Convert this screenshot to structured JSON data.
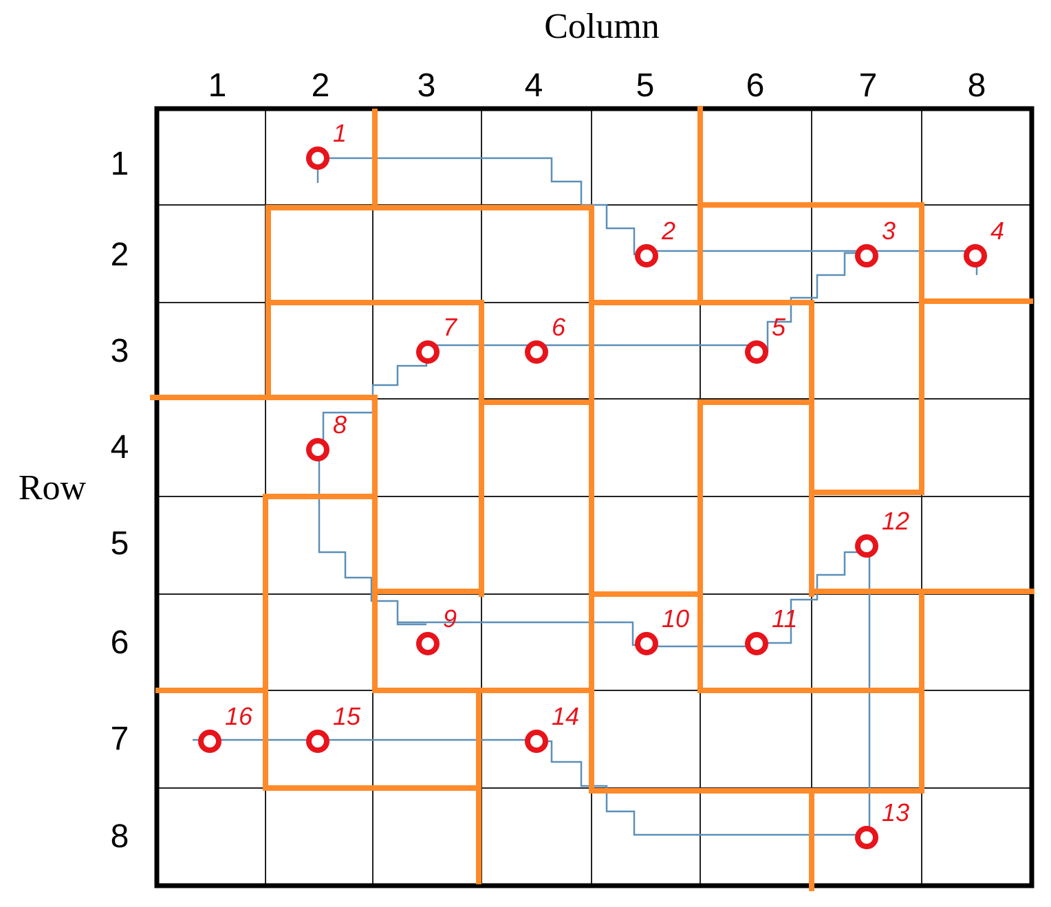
{
  "axis": {
    "column_title": "Column",
    "row_title": "Row",
    "columns": [
      "1",
      "2",
      "3",
      "4",
      "5",
      "6",
      "7",
      "8"
    ],
    "rows": [
      "1",
      "2",
      "3",
      "4",
      "5",
      "6",
      "7",
      "8"
    ]
  },
  "colors": {
    "grid": "#000000",
    "partition": "#ff8a2a",
    "path": "#5b8fb8",
    "marker": "#e8141b",
    "label": "#e8141b"
  },
  "nodes": [
    {
      "label": "1",
      "row": 1,
      "col": 2
    },
    {
      "label": "2",
      "row": 2,
      "col": 5
    },
    {
      "label": "3",
      "row": 2,
      "col": 7
    },
    {
      "label": "4",
      "row": 2,
      "col": 8
    },
    {
      "label": "5",
      "row": 3,
      "col": 6
    },
    {
      "label": "6",
      "row": 3,
      "col": 4
    },
    {
      "label": "7",
      "row": 3,
      "col": 3
    },
    {
      "label": "8",
      "row": 4,
      "col": 2
    },
    {
      "label": "9",
      "row": 6,
      "col": 3
    },
    {
      "label": "10",
      "row": 6,
      "col": 5
    },
    {
      "label": "11",
      "row": 6,
      "col": 6
    },
    {
      "label": "12",
      "row": 5,
      "col": 7
    },
    {
      "label": "13",
      "row": 8,
      "col": 7
    },
    {
      "label": "14",
      "row": 7,
      "col": 4
    },
    {
      "label": "15",
      "row": 7,
      "col": 2
    },
    {
      "label": "16",
      "row": 7,
      "col": 1
    }
  ]
}
